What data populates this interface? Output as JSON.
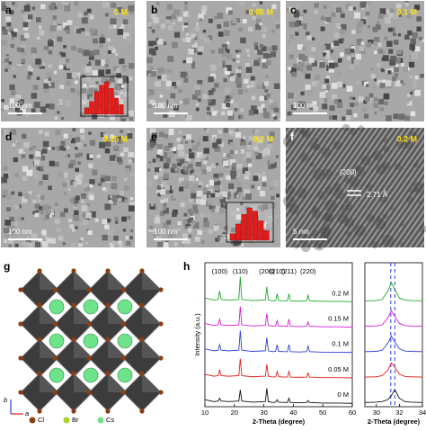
{
  "panels": [
    {
      "label": "a",
      "concentration": "0 M",
      "scale_bar": "100 nm",
      "histogram": [
        2,
        4,
        7,
        9,
        10,
        8,
        5,
        3
      ]
    },
    {
      "label": "b",
      "concentration": "0.05 M",
      "scale_bar": "100 nm"
    },
    {
      "label": "c",
      "concentration": "0.1 M",
      "scale_bar": "100 nm"
    },
    {
      "label": "d",
      "concentration": "0.15 M",
      "scale_bar": "100 nm"
    },
    {
      "label": "e",
      "concentration": "0.2 M",
      "scale_bar": "100 nm",
      "histogram": [
        2,
        5,
        8,
        10,
        9,
        6,
        3
      ]
    },
    {
      "label": "f",
      "concentration": "0.2 M",
      "scale_bar": "5 nm",
      "plane": "(200)",
      "spacing": "2.71 Å"
    }
  ],
  "structure": {
    "label": "g",
    "legend": [
      "Cl",
      "Br",
      "Cs"
    ],
    "axes": [
      "b",
      "a"
    ]
  },
  "chart_label": "h",
  "chart_data": [
    {
      "type": "line",
      "ylabel": "Intensity (a.u.)",
      "xlabel": "2-Theta (degree)",
      "xlim": [
        10,
        60
      ],
      "xticks": [
        10,
        20,
        30,
        40,
        50,
        60
      ],
      "ylim": [
        -0.1,
        5.0
      ],
      "peak_labels": [
        {
          "label": "(100)",
          "x": 15
        },
        {
          "label": "(110)",
          "x": 22
        },
        {
          "label": "(200)",
          "x": 31
        },
        {
          "label": "(210)",
          "x": 34.5
        },
        {
          "label": "(211)",
          "x": 38.5
        },
        {
          "label": "(220)",
          "x": 45
        }
      ],
      "x": [
        10,
        13,
        14.5,
        15,
        15.5,
        18,
        21.5,
        22,
        22.5,
        26,
        30.5,
        31,
        31.5,
        33,
        34,
        34.5,
        35,
        37,
        38,
        38.5,
        39,
        42,
        44.5,
        45,
        45.5,
        50,
        55,
        60
      ],
      "series": [
        {
          "name": "0 M",
          "color": "#111111",
          "values": [
            0.15,
            0.08,
            0.1,
            0.2,
            0.1,
            0.08,
            0.1,
            0.5,
            0.1,
            0.06,
            0.08,
            0.55,
            0.08,
            0.05,
            0.06,
            0.15,
            0.06,
            0.05,
            0.05,
            0.2,
            0.05,
            0.04,
            0.05,
            0.12,
            0.05,
            0.03,
            0.03,
            0.02
          ]
        },
        {
          "name": "0.05 M",
          "color": "#e0201b",
          "values": [
            1.05,
            0.98,
            1.0,
            1.2,
            1.0,
            0.98,
            1.0,
            1.6,
            1.0,
            0.96,
            0.98,
            1.4,
            0.98,
            0.95,
            0.96,
            1.15,
            0.96,
            0.95,
            0.95,
            1.15,
            0.95,
            0.94,
            0.95,
            1.1,
            0.95,
            0.93,
            0.93,
            0.92
          ]
        },
        {
          "name": "0.1 M",
          "color": "#2f3fe0",
          "values": [
            1.95,
            1.88,
            1.9,
            2.1,
            1.9,
            1.88,
            1.9,
            2.6,
            1.9,
            1.86,
            1.88,
            2.35,
            1.88,
            1.85,
            1.86,
            2.1,
            1.86,
            1.85,
            1.85,
            2.1,
            1.85,
            1.84,
            1.85,
            2.05,
            1.85,
            1.83,
            1.83,
            1.82
          ]
        },
        {
          "name": "0.15 M",
          "color": "#d81ad8",
          "values": [
            2.85,
            2.78,
            2.8,
            3.0,
            2.8,
            2.78,
            2.8,
            3.45,
            2.8,
            2.76,
            2.78,
            3.2,
            2.78,
            2.75,
            2.76,
            2.95,
            2.76,
            2.75,
            2.75,
            3.0,
            2.75,
            2.74,
            2.75,
            2.9,
            2.75,
            2.73,
            2.73,
            2.72
          ]
        },
        {
          "name": "0.2 M",
          "color": "#1fa82a",
          "values": [
            3.75,
            3.68,
            3.7,
            4.0,
            3.7,
            3.68,
            3.7,
            4.5,
            3.7,
            3.66,
            3.68,
            4.15,
            3.68,
            3.65,
            3.66,
            3.9,
            3.66,
            3.65,
            3.65,
            3.9,
            3.65,
            3.64,
            3.65,
            3.85,
            3.65,
            3.63,
            3.63,
            3.62
          ]
        }
      ]
    },
    {
      "type": "line",
      "xlabel": "2-Theta (degree)",
      "xlim": [
        29,
        34
      ],
      "xticks": [
        30,
        32,
        34
      ],
      "ylim": [
        -0.1,
        5.0
      ],
      "vlines": [
        31.25,
        31.6
      ],
      "vline_color": "#2f3fe0",
      "x": [
        29,
        30,
        30.5,
        31,
        31.3,
        31.6,
        32,
        32.5,
        33,
        34
      ],
      "series": [
        {
          "color": "#111111",
          "values": [
            0.05,
            0.06,
            0.08,
            0.15,
            0.3,
            0.5,
            0.2,
            0.08,
            0.06,
            0.05
          ]
        },
        {
          "color": "#e0201b",
          "values": [
            0.95,
            0.96,
            1.0,
            1.2,
            1.45,
            1.3,
            1.05,
            0.97,
            0.96,
            0.95
          ]
        },
        {
          "color": "#2f3fe0",
          "values": [
            1.85,
            1.86,
            1.9,
            2.15,
            2.4,
            2.2,
            1.95,
            1.87,
            1.86,
            1.85
          ]
        },
        {
          "color": "#d81ad8",
          "values": [
            2.75,
            2.76,
            2.8,
            3.05,
            3.3,
            3.1,
            2.85,
            2.77,
            2.76,
            2.75
          ]
        },
        {
          "color": "#1fa82a",
          "values": [
            3.65,
            3.66,
            3.7,
            4.0,
            4.3,
            4.05,
            3.75,
            3.67,
            3.66,
            3.65
          ]
        }
      ]
    }
  ]
}
